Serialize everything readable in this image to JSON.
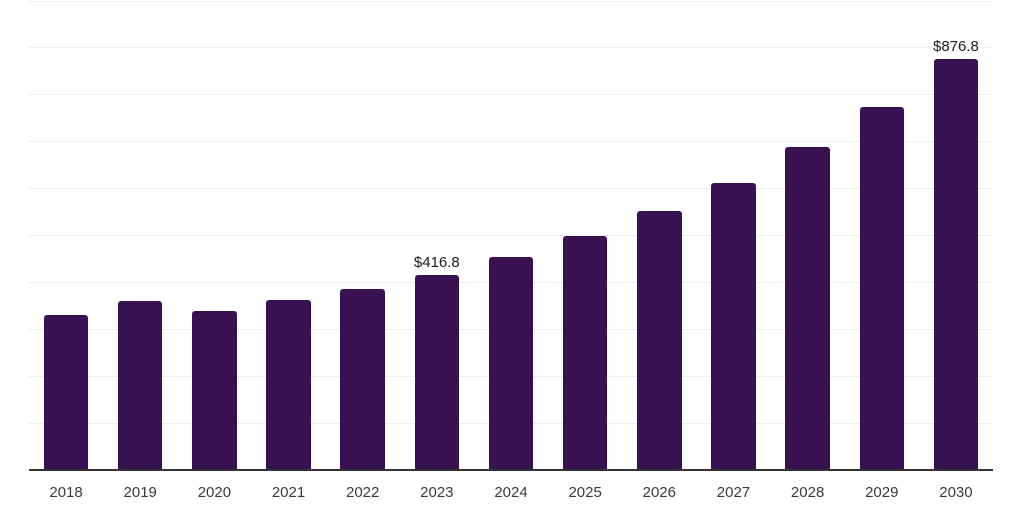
{
  "chart_data": {
    "type": "bar",
    "title": "",
    "xlabel": "",
    "ylabel": "",
    "categories": [
      "2018",
      "2019",
      "2020",
      "2021",
      "2022",
      "2023",
      "2024",
      "2025",
      "2026",
      "2027",
      "2028",
      "2029",
      "2030"
    ],
    "values": [
      331,
      361,
      340,
      362,
      386,
      416.8,
      454,
      500,
      552,
      613,
      689,
      774,
      876.8
    ],
    "data_labels": [
      "",
      "",
      "",
      "",
      "",
      "$416.8",
      "",
      "",
      "",
      "",
      "",
      "",
      "$876.8"
    ],
    "ylim": [
      0,
      1000
    ],
    "grid_step": 100,
    "grid": true,
    "legend": false,
    "y_axis_labels_visible": false,
    "colors": {
      "bar": "#371150",
      "gridline": "#ededed",
      "axis_line": "#333333",
      "tick_label": "#3a3a3a",
      "data_label": "#1c1c1c",
      "background": "#ffffff"
    }
  }
}
